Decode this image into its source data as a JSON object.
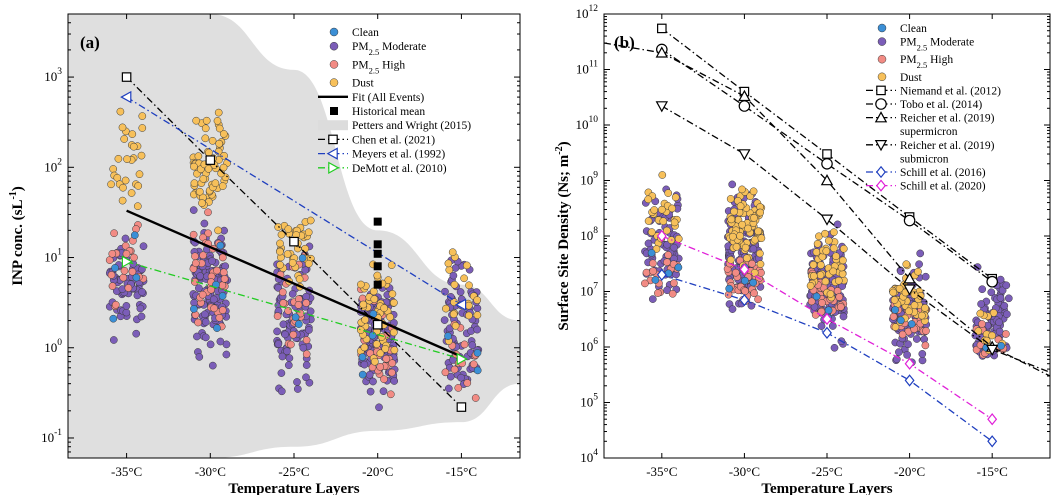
{
  "chart_data": [
    {
      "type": "scatter",
      "panel_label": "(a)",
      "ylabel": "INP conc. (sL-1)",
      "xlabel": "Temperature Layers",
      "yscale": "log",
      "ylim": [
        0.06,
        5000
      ],
      "xlim": [
        -38.5,
        -11.5
      ],
      "categories": [
        "-35°C",
        "-30°C",
        "-25°C",
        "-20°C",
        "-15°C"
      ],
      "legend_position": "top-right",
      "scatter_series": [
        {
          "name": "Clean",
          "color": "#3b8fd6"
        },
        {
          "name": "PM2.5 Moderate",
          "color": "#7b5db8"
        },
        {
          "name": "PM2.5 High",
          "color": "#f28b84"
        },
        {
          "name": "Dust",
          "color": "#f7c05a"
        }
      ],
      "clusters": [
        {
          "x": -35,
          "ranges": [
            [
              0.6,
              80
            ],
            [
              0.8,
              30
            ],
            [
              1.5,
              40
            ],
            [
              20,
              900
            ]
          ],
          "counts": [
            4,
            70,
            22,
            28
          ]
        },
        {
          "x": -30,
          "ranges": [
            [
              0.5,
              60
            ],
            [
              0.5,
              40
            ],
            [
              1.0,
              40
            ],
            [
              15,
              600
            ]
          ],
          "counts": [
            5,
            130,
            40,
            70
          ]
        },
        {
          "x": -25,
          "ranges": [
            [
              0.3,
              20
            ],
            [
              0.15,
              30
            ],
            [
              0.4,
              20
            ],
            [
              3,
              60
            ]
          ],
          "counts": [
            3,
            90,
            25,
            40
          ]
        },
        {
          "x": -20,
          "ranges": [
            [
              0.15,
              5
            ],
            [
              0.15,
              8
            ],
            [
              0.15,
              6
            ],
            [
              0.3,
              15
            ]
          ],
          "counts": [
            4,
            120,
            30,
            55
          ]
        },
        {
          "x": -15,
          "ranges": [
            [
              0.15,
              3
            ],
            [
              0.15,
              20
            ],
            [
              0.15,
              4
            ],
            [
              0.5,
              25
            ]
          ],
          "counts": [
            3,
            80,
            15,
            20
          ]
        }
      ],
      "lines": [
        {
          "name": "Fit (All Events)",
          "x": [
            -35,
            -15
          ],
          "y": [
            33,
            0.8
          ],
          "color": "#000000",
          "style": "solid",
          "marker": "none"
        },
        {
          "name": "Chen et al. (2021)",
          "x": [
            -35,
            -30,
            -25,
            -20,
            -15
          ],
          "y": [
            1000,
            120,
            15,
            1.8,
            0.22
          ],
          "color": "#000000",
          "style": "dashdot",
          "marker": "square"
        },
        {
          "name": "Meyers et al. (1992)",
          "x": [
            -35,
            -15
          ],
          "y": [
            600,
            3
          ],
          "color": "#1f3fbf",
          "style": "dashdot",
          "marker": "triangle-left"
        },
        {
          "name": "DeMott et al. (2010)",
          "x": [
            -35,
            -15
          ],
          "y": [
            9,
            0.75
          ],
          "color": "#22cc22",
          "style": "dashdot",
          "marker": "triangle-right"
        }
      ],
      "historical_mean": {
        "name": "Historical mean",
        "x": [
          -20,
          -20,
          -20,
          -20,
          -20
        ],
        "y": [
          25,
          14,
          11,
          8,
          5
        ]
      },
      "band": {
        "name": "Petters and Wright (2015)",
        "upper": [
          [
            -38.5,
            5000
          ],
          [
            -30,
            5000
          ],
          [
            -25,
            1200
          ],
          [
            -20,
            20
          ],
          [
            -15,
            5
          ],
          [
            -11.5,
            2
          ]
        ],
        "lower": [
          [
            -38.5,
            0.06
          ],
          [
            -30,
            0.06
          ],
          [
            -25,
            0.08
          ],
          [
            -20,
            0.12
          ],
          [
            -15,
            0.15
          ],
          [
            -11.5,
            0.4
          ]
        ]
      }
    },
    {
      "type": "scatter",
      "panel_label": "(b)",
      "ylabel": "Surface Site Density (Ns; m-2)",
      "xlabel": "Temperature Layers",
      "yscale": "log",
      "ylim": [
        10000,
        1000000000000
      ],
      "xlim": [
        -38.5,
        -11.5
      ],
      "categories": [
        "-35°C",
        "-30°C",
        "-25°C",
        "-20°C",
        "-15°C"
      ],
      "legend_position": "top-right",
      "scatter_series": [
        {
          "name": "Clean",
          "color": "#3b8fd6"
        },
        {
          "name": "PM2.5 Moderate",
          "color": "#7b5db8"
        },
        {
          "name": "PM2.5 High",
          "color": "#f28b84"
        },
        {
          "name": "Dust",
          "color": "#f7c05a"
        }
      ],
      "clusters": [
        {
          "x": -35,
          "ranges": [
            [
              8000000,
              60000000
            ],
            [
              3000000,
              2000000000
            ],
            [
              5000000,
              100000000
            ],
            [
              40000000,
              2500000000
            ]
          ],
          "counts": [
            4,
            70,
            18,
            30
          ]
        },
        {
          "x": -30,
          "ranges": [
            [
              5000000,
              40000000
            ],
            [
              2000000,
              1500000000
            ],
            [
              3000000,
              80000000
            ],
            [
              10000000,
              2000000000
            ]
          ],
          "counts": [
            4,
            130,
            40,
            80
          ]
        },
        {
          "x": -25,
          "ranges": [
            [
              2000000,
              20000000
            ],
            [
              700000,
              300000000
            ],
            [
              1500000,
              40000000
            ],
            [
              5000000,
              250000000
            ]
          ],
          "counts": [
            3,
            110,
            30,
            45
          ]
        },
        {
          "x": -20,
          "ranges": [
            [
              1000000,
              8000000
            ],
            [
              300000,
              60000000
            ],
            [
              500000,
              15000000
            ],
            [
              1000000,
              50000000
            ]
          ],
          "counts": [
            3,
            110,
            30,
            45
          ]
        },
        {
          "x": -15,
          "ranges": [
            [
              500000,
              3000000
            ],
            [
              300000,
              40000000
            ],
            [
              400000,
              5000000
            ],
            [
              500000,
              8000000
            ]
          ],
          "counts": [
            2,
            85,
            15,
            12
          ]
        }
      ],
      "lines": [
        {
          "name": "Niemand et al. (2012)",
          "x": [
            -35,
            -30,
            -25,
            -20,
            -15
          ],
          "y": [
            550000000000,
            40000000000,
            3000000000,
            220000000,
            17000000
          ],
          "color": "#000000",
          "style": "dashdot",
          "marker": "square"
        },
        {
          "name": "Tobo et al. (2014)",
          "x": [
            -35,
            -30,
            -25,
            -20,
            -15
          ],
          "y": [
            230000000000,
            22000000000,
            2000000000,
            190000000,
            15000000
          ],
          "color": "#000000",
          "style": "dashdot",
          "marker": "circle"
        },
        {
          "name": "Reicher et al. (2019) supermicron",
          "x": [
            -38.5,
            -35,
            -30,
            -25,
            -20,
            -15,
            -11.5
          ],
          "y": [
            300000000000,
            200000000000,
            33000000000,
            1000000000,
            17000000,
            1000000,
            300000
          ],
          "color": "#000000",
          "style": "dashdot",
          "marker": "triangle-up"
        },
        {
          "name": "Reicher et al. (2019) submicron",
          "x": [
            -35,
            -30,
            -25,
            -20,
            -15,
            -11.5
          ],
          "y": [
            22000000000,
            3000000000,
            200000000,
            11000000,
            900000,
            350000
          ],
          "color": "#000000",
          "style": "dashdot",
          "marker": "triangle-down"
        },
        {
          "name": "Schill et al. (2016)",
          "x": [
            -35,
            -30,
            -25,
            -20,
            -15
          ],
          "y": [
            20000000,
            7000000,
            1800000,
            250000,
            20000
          ],
          "color": "#1f3fbf",
          "style": "dashdot",
          "marker": "diamond"
        },
        {
          "name": "Schill et al. (2020)",
          "x": [
            -35,
            -30,
            -25,
            -20,
            -15
          ],
          "y": [
            100000000,
            25000000,
            3200000,
            500000,
            50000
          ],
          "color": "#e020d8",
          "style": "dashdot",
          "marker": "diamond"
        }
      ]
    }
  ]
}
